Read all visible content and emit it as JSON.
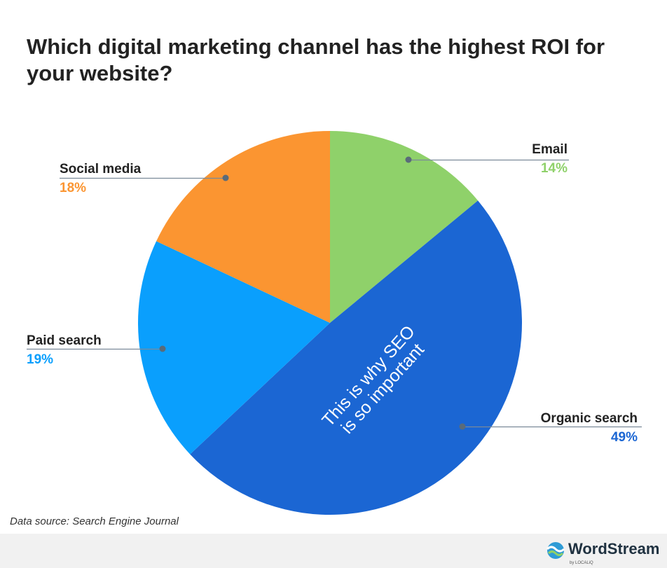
{
  "chart_data": {
    "type": "pie",
    "title": "Which digital marketing channel has the highest ROI for your website?",
    "categories": [
      "Email",
      "Organic search",
      "Paid search",
      "Social media"
    ],
    "values": [
      14,
      49,
      19,
      18
    ],
    "value_labels": [
      "14%",
      "49%",
      "19%",
      "18%"
    ],
    "colors": [
      "#8fd16a",
      "#1b66d3",
      "#0a9ffd",
      "#fb9531"
    ],
    "annotation": [
      "This is why SEO",
      "is so important"
    ],
    "source": "Data source: Search Engine Journal"
  },
  "brand": {
    "name": "WordStream",
    "sub": "by LOCALiQ"
  }
}
